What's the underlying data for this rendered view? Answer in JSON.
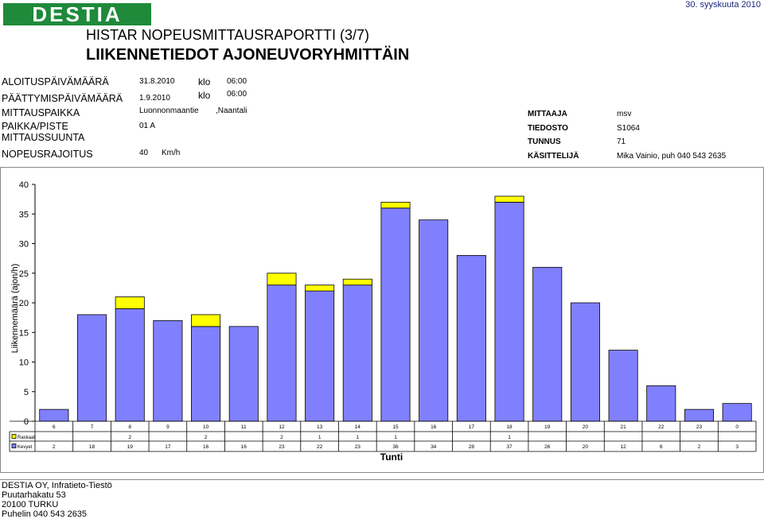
{
  "header": {
    "logo_text": "DESTIA",
    "date": "30. syyskuuta 2010",
    "title": "HISTAR NOPEUSMITTAUSRAPORTTI (3/7)",
    "subtitle": "LIIKENNETIEDOT AJONEUVORYHMITTÄIN"
  },
  "meta": {
    "start_label": "ALOITUSPÄIVÄMÄÄRÄ",
    "start_date": "31.8.2010",
    "start_klo": "klo",
    "start_time": "06:00",
    "end_label": "PÄÄTTYMISPÄIVÄMÄÄRÄ",
    "end_date": "1.9.2010",
    "end_klo": "klo",
    "end_time": "06:00",
    "place_label": "MITTAUSPAIKKA",
    "place_road": "Luonnonmaantie",
    "place_city": ",Naantali",
    "point_label": "PAIKKA/PISTE",
    "point_value": "01 A",
    "direction_label": "MITTAUSSUUNTA",
    "speed_label": "NOPEUSRAJOITUS",
    "speed_value": "40",
    "speed_unit": "Km/h",
    "measurer_label": "MITTAAJA",
    "measurer_value": "msv",
    "file_label": "TIEDOSTO",
    "file_value": "S1064",
    "id_label": "TUNNUS",
    "id_value": "71",
    "handler_label": "KÄSITTELIJÄ",
    "handler_value": "Mika Vainio, puh 040 543 2635"
  },
  "chart_data": {
    "type": "bar",
    "stacked": true,
    "title": "",
    "xlabel": "Tunti",
    "ylabel": "Liikennemäärä (ajon/h)",
    "ylim": [
      0,
      40
    ],
    "yticks": [
      "0",
      "5",
      "10",
      "15",
      "20",
      "25",
      "30",
      "35",
      "40"
    ],
    "categories": [
      "6",
      "7",
      "8",
      "9",
      "10",
      "11",
      "12",
      "13",
      "14",
      "15",
      "16",
      "17",
      "18",
      "19",
      "20",
      "21",
      "22",
      "23",
      "0"
    ],
    "series": [
      {
        "name": "Kevyet",
        "color": "#8080ff",
        "values": [
          2,
          18,
          19,
          17,
          16,
          16,
          23,
          22,
          23,
          36,
          34,
          28,
          37,
          26,
          20,
          12,
          6,
          2,
          3
        ],
        "labels": [
          "2",
          "18",
          "19",
          "17",
          "16",
          "16",
          "23",
          "22",
          "23",
          "36",
          "34",
          "28",
          "37",
          "26",
          "20",
          "12",
          "6",
          "2",
          "3"
        ]
      },
      {
        "name": "Raskaat",
        "color": "#ffff00",
        "values": [
          0,
          0,
          2,
          0,
          2,
          0,
          2,
          1,
          1,
          1,
          0,
          0,
          1,
          0,
          0,
          0,
          0,
          0,
          0
        ],
        "labels": [
          "",
          "",
          "2",
          "",
          "2",
          "",
          "2",
          "1",
          "1",
          "1",
          "",
          "",
          "1",
          "",
          "",
          "",
          "",
          "",
          ""
        ]
      }
    ],
    "grid": false,
    "legend": "table-below"
  },
  "footer": {
    "line1": "DESTIA OY, Infratieto-Tiestö",
    "line2": "Puutarhakatu 53",
    "line3": "20100 TURKU",
    "line4": "Puhelin  040 543 2635"
  }
}
